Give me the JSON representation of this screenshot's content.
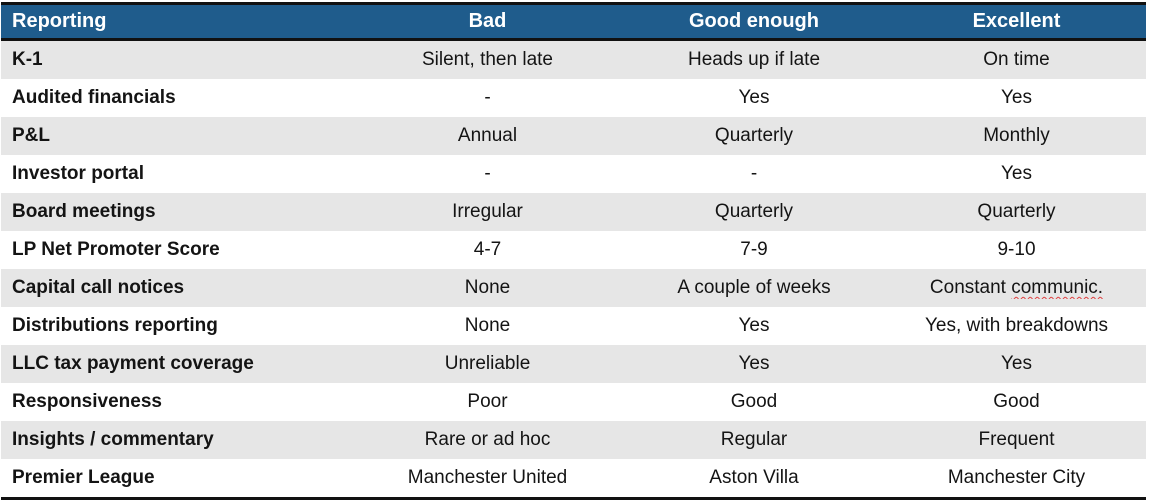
{
  "table": {
    "columns": [
      {
        "key": "label",
        "label": "Reporting"
      },
      {
        "key": "bad",
        "label": "Bad"
      },
      {
        "key": "good_enough",
        "label": "Good enough"
      },
      {
        "key": "excellent",
        "label": "Excellent"
      }
    ],
    "rows": [
      {
        "label": "K-1",
        "bad": "Silent, then late",
        "good_enough": "Heads up if late",
        "excellent": "On time"
      },
      {
        "label": "Audited financials",
        "bad": "-",
        "good_enough": "Yes",
        "excellent": "Yes"
      },
      {
        "label": "P&L",
        "bad": "Annual",
        "good_enough": "Quarterly",
        "excellent": "Monthly"
      },
      {
        "label": "Investor portal",
        "bad": "-",
        "good_enough": "-",
        "excellent": "Yes"
      },
      {
        "label": "Board meetings",
        "bad": "Irregular",
        "good_enough": "Quarterly",
        "excellent": "Quarterly"
      },
      {
        "label": "LP Net Promoter Score",
        "bad": "4-7",
        "good_enough": "7-9",
        "excellent": "9-10"
      },
      {
        "label": "Capital call notices",
        "bad": "None",
        "good_enough": "A couple of weeks",
        "excellent": "Constant communic."
      },
      {
        "label": "Distributions reporting",
        "bad": "None",
        "good_enough": "Yes",
        "excellent": "Yes, with breakdowns"
      },
      {
        "label": "LLC tax payment coverage",
        "bad": "Unreliable",
        "good_enough": "Yes",
        "excellent": "Yes"
      },
      {
        "label": "Responsiveness",
        "bad": "Poor",
        "good_enough": "Good",
        "excellent": "Good"
      },
      {
        "label": "Insights / commentary",
        "bad": "Rare or ad hoc",
        "good_enough": "Regular",
        "excellent": "Frequent"
      },
      {
        "label": "Premier League",
        "bad": "Manchester United",
        "good_enough": "Aston Villa",
        "excellent": "Manchester City"
      }
    ],
    "spellcheck": {
      "row_index": 6,
      "column_key": "excellent",
      "word": "communic."
    }
  },
  "colors": {
    "header_bg": "#1F5C8C",
    "row_alt_bg": "#E6E6E6",
    "border": "#111111",
    "spellcheck_underline": "#E04040"
  }
}
